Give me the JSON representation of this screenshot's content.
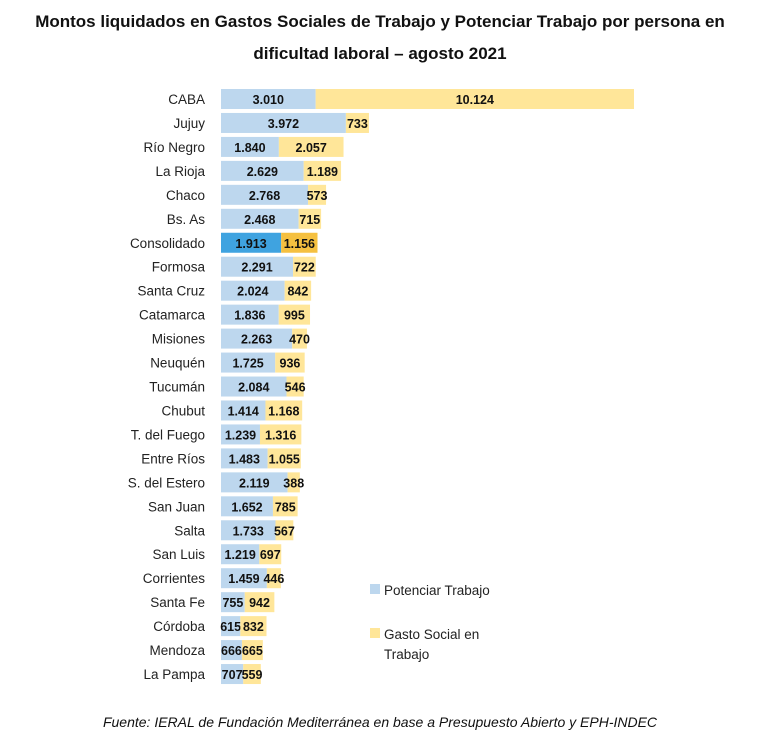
{
  "chart_data": {
    "type": "bar",
    "orientation": "horizontal",
    "stacked": true,
    "title_line1": "Montos liquidados en Gastos Sociales de Trabajo y Potenciar Trabajo por persona en",
    "title_line2": "dificultad laboral – agosto 2021",
    "categories": [
      "CABA",
      "Jujuy",
      "Río Negro",
      "La Rioja",
      "Chaco",
      "Bs. As",
      "Consolidado",
      "Formosa",
      "Santa Cruz",
      "Catamarca",
      "Misiones",
      "Neuquén",
      "Tucumán",
      "Chubut",
      "T. del Fuego",
      "Entre Ríos",
      "S. del Estero",
      "San Juan",
      "Salta",
      "San Luis",
      "Corrientes",
      "Santa Fe",
      "Córdoba",
      "Mendoza",
      "La Pampa"
    ],
    "series": [
      {
        "name": "Potenciar Trabajo",
        "color": "#bdd7ee",
        "highlight_color": "#3fa3e0",
        "values": [
          3010,
          3972,
          1840,
          2629,
          2768,
          2468,
          1913,
          2291,
          2024,
          1836,
          2263,
          1725,
          2084,
          1414,
          1239,
          1483,
          2119,
          1652,
          1733,
          1219,
          1459,
          755,
          615,
          666,
          707
        ]
      },
      {
        "name": "Gasto Social en Trabajo",
        "color": "#ffe699",
        "highlight_color": "#f5c040",
        "values": [
          10124,
          733,
          2057,
          1189,
          573,
          715,
          1156,
          722,
          842,
          995,
          470,
          936,
          546,
          1168,
          1316,
          1055,
          388,
          785,
          567,
          697,
          446,
          942,
          832,
          665,
          559
        ]
      }
    ],
    "highlight_category": "Consolidado",
    "legend_position": "right",
    "legend_labels": [
      "Potenciar Trabajo",
      "Gasto Social en",
      "Trabajo"
    ],
    "grid": false,
    "xlim": [
      0,
      13134
    ]
  },
  "footer": "Fuente: IERAL de Fundación Mediterránea en base a Presupuesto Abierto y EPH-INDEC"
}
